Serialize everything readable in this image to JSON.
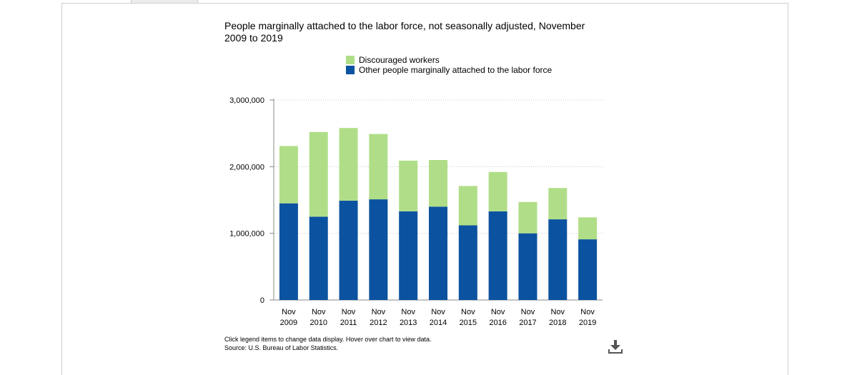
{
  "chart_title": "People marginally attached to the labor force, not seasonally adjusted, November 2009 to 2019",
  "legend": [
    {
      "label": "Discouraged workers",
      "color": "#b0de88"
    },
    {
      "label": "Other people marginally attached to the labor force",
      "color": "#0b53a0"
    }
  ],
  "footer": {
    "note": "Click legend items to change data display. Hover over chart to view data.",
    "source": "Source: U.S. Bureau of Labor Statistics."
  },
  "download_icon": "download-icon",
  "chart_data": {
    "type": "bar",
    "stacked": true,
    "title": "People marginally attached to the labor force, not seasonally adjusted, November 2009 to 2019",
    "categories": [
      "Nov 2009",
      "Nov 2010",
      "Nov 2011",
      "Nov 2012",
      "Nov 2013",
      "Nov 2014",
      "Nov 2015",
      "Nov 2016",
      "Nov 2017",
      "Nov 2018",
      "Nov 2019"
    ],
    "tick_labels": [
      [
        "Nov",
        "2009"
      ],
      [
        "Nov",
        "2010"
      ],
      [
        "Nov",
        "2011"
      ],
      [
        "Nov",
        "2012"
      ],
      [
        "Nov",
        "2013"
      ],
      [
        "Nov",
        "2014"
      ],
      [
        "Nov",
        "2015"
      ],
      [
        "Nov",
        "2016"
      ],
      [
        "Nov",
        "2017"
      ],
      [
        "Nov",
        "2018"
      ],
      [
        "Nov",
        "2019"
      ]
    ],
    "series": [
      {
        "name": "Other people marginally attached to the labor force",
        "color": "#0b53a0",
        "values": [
          1450000,
          1250000,
          1490000,
          1510000,
          1330000,
          1400000,
          1120000,
          1330000,
          1000000,
          1210000,
          910000
        ]
      },
      {
        "name": "Discouraged workers",
        "color": "#b0de88",
        "values": [
          860000,
          1270000,
          1090000,
          980000,
          760000,
          700000,
          590000,
          590000,
          470000,
          470000,
          330000
        ]
      }
    ],
    "ylim": [
      0,
      3000000
    ],
    "yticks": [
      0,
      1000000,
      2000000,
      3000000
    ],
    "ytick_labels": [
      "0",
      "1,000,000",
      "2,000,000",
      "3,000,000"
    ],
    "grid": true
  }
}
